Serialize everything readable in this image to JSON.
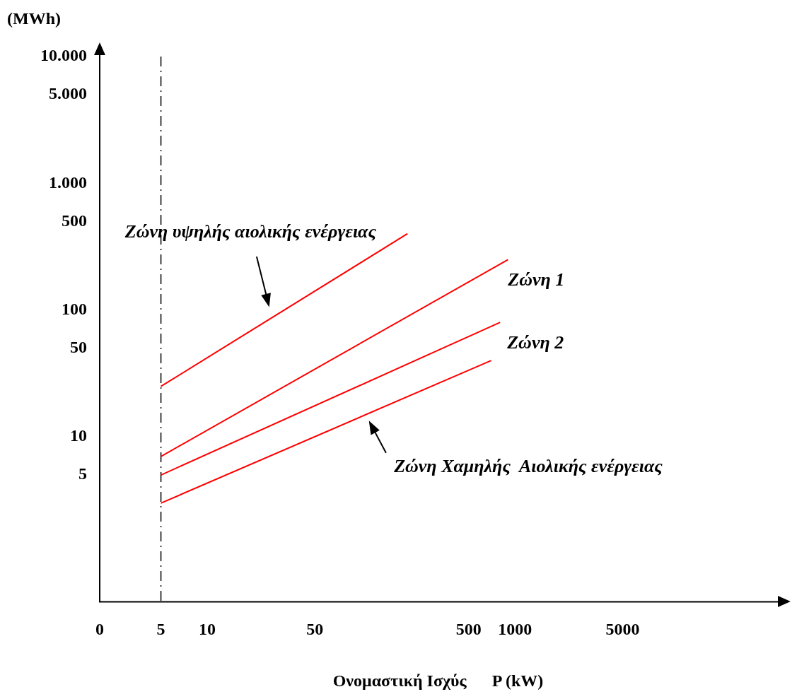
{
  "chart_data": {
    "type": "line",
    "xlabel": "Ονομαστική Ισχύς      P (kW)",
    "ylabel": "(MWh)",
    "xlim": [
      0,
      50000
    ],
    "xticks": [
      0,
      5,
      10,
      50,
      500,
      1000,
      5000
    ],
    "ylim": [
      0.5,
      10000
    ],
    "yticks": [
      5,
      10,
      50,
      100,
      500,
      {
        "value": 1000,
        "label": "1.000"
      },
      {
        "value": 5000,
        "label": "5.000"
      },
      {
        "value": 10000,
        "label": "10.000"
      }
    ],
    "log": "xy",
    "grid": false,
    "legend": false,
    "marker": "none",
    "series": [
      {
        "name": "Ζώνη υψηλής αιολικής ενέργειας",
        "color": "#ff0000",
        "x": [
          5,
          200
        ],
        "values": [
          25,
          400
        ]
      },
      {
        "name": "Ζώνη 1",
        "color": "#ff0000",
        "x": [
          5,
          900
        ],
        "values": [
          7,
          250
        ]
      },
      {
        "name": "Ζώνη 2",
        "color": "#ff0000",
        "x": [
          5,
          800
        ],
        "values": [
          5,
          80
        ]
      },
      {
        "name": "Ζώνη Χαμηλής  Αιολικής ενέργειας",
        "color": "#ff0000",
        "x": [
          5,
          700
        ],
        "values": [
          3,
          40
        ]
      }
    ],
    "ref_lines": [
      {
        "axis": "x",
        "value": 5,
        "color": "#000000",
        "line_style": "dashed"
      }
    ]
  }
}
